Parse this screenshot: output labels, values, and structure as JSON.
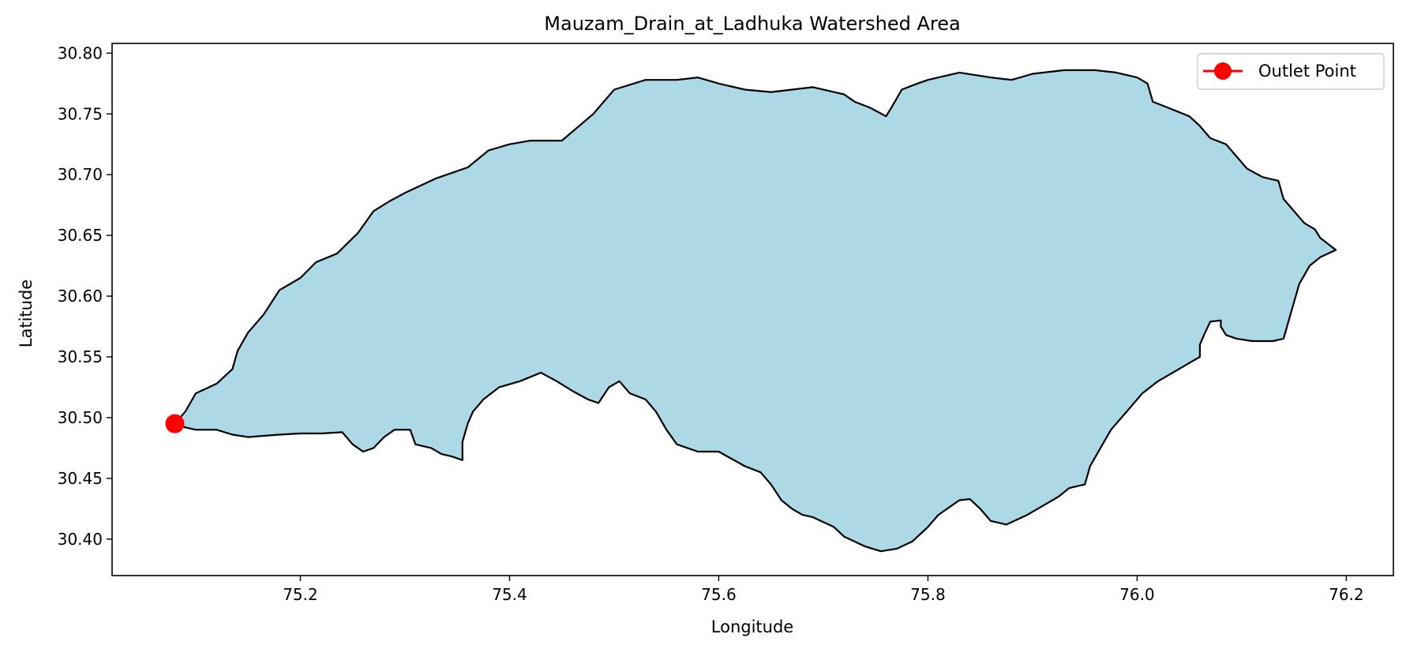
{
  "chart_data": {
    "type": "scatter",
    "title": "Mauzam_Drain_at_Ladhuka Watershed Area",
    "xlabel": "Longitude",
    "ylabel": "Latitude",
    "xlim": [
      75.02,
      76.245
    ],
    "ylim": [
      30.37,
      30.808
    ],
    "xticks": [
      75.2,
      75.4,
      75.6,
      75.8,
      76.0,
      76.2
    ],
    "xtick_labels": [
      "75.2",
      "75.4",
      "75.6",
      "75.8",
      "76.0",
      "76.2"
    ],
    "yticks": [
      30.4,
      30.45,
      30.5,
      30.55,
      30.6,
      30.65,
      30.7,
      30.75,
      30.8
    ],
    "ytick_labels": [
      "30.40",
      "30.45",
      "30.50",
      "30.55",
      "30.60",
      "30.65",
      "30.70",
      "30.75",
      "30.80"
    ],
    "grid": false,
    "legend_position": "top-right",
    "watershed": {
      "fill": "#add8e6",
      "edge": "#000000",
      "boundary": [
        [
          75.08,
          30.495
        ],
        [
          75.09,
          30.505
        ],
        [
          75.1,
          30.52
        ],
        [
          75.12,
          30.528
        ],
        [
          75.135,
          30.54
        ],
        [
          75.14,
          30.555
        ],
        [
          75.15,
          30.57
        ],
        [
          75.165,
          30.585
        ],
        [
          75.18,
          30.605
        ],
        [
          75.2,
          30.615
        ],
        [
          75.215,
          30.628
        ],
        [
          75.235,
          30.635
        ],
        [
          75.255,
          30.652
        ],
        [
          75.27,
          30.67
        ],
        [
          75.285,
          30.678
        ],
        [
          75.3,
          30.685
        ],
        [
          75.33,
          30.697
        ],
        [
          75.36,
          30.706
        ],
        [
          75.38,
          30.72
        ],
        [
          75.4,
          30.725
        ],
        [
          75.42,
          30.728
        ],
        [
          75.45,
          30.728
        ],
        [
          75.48,
          30.75
        ],
        [
          75.5,
          30.77
        ],
        [
          75.53,
          30.778
        ],
        [
          75.56,
          30.778
        ],
        [
          75.58,
          30.78
        ],
        [
          75.6,
          30.775
        ],
        [
          75.625,
          30.77
        ],
        [
          75.65,
          30.768
        ],
        [
          75.69,
          30.772
        ],
        [
          75.72,
          30.766
        ],
        [
          75.73,
          30.76
        ],
        [
          75.745,
          30.755
        ],
        [
          75.76,
          30.748
        ],
        [
          75.765,
          30.755
        ],
        [
          75.775,
          30.77
        ],
        [
          75.79,
          30.775
        ],
        [
          75.8,
          30.778
        ],
        [
          75.83,
          30.784
        ],
        [
          75.86,
          30.78
        ],
        [
          75.88,
          30.778
        ],
        [
          75.9,
          30.783
        ],
        [
          75.93,
          30.786
        ],
        [
          75.96,
          30.786
        ],
        [
          75.98,
          30.784
        ],
        [
          76.0,
          30.78
        ],
        [
          76.01,
          30.775
        ],
        [
          76.015,
          30.76
        ],
        [
          76.03,
          30.755
        ],
        [
          76.05,
          30.748
        ],
        [
          76.06,
          30.74
        ],
        [
          76.07,
          30.73
        ],
        [
          76.085,
          30.725
        ],
        [
          76.095,
          30.715
        ],
        [
          76.105,
          30.705
        ],
        [
          76.12,
          30.698
        ],
        [
          76.135,
          30.695
        ],
        [
          76.14,
          30.68
        ],
        [
          76.15,
          30.67
        ],
        [
          76.16,
          30.66
        ],
        [
          76.17,
          30.655
        ],
        [
          76.175,
          30.648
        ],
        [
          76.19,
          30.638
        ],
        [
          76.175,
          30.632
        ],
        [
          76.165,
          30.625
        ],
        [
          76.155,
          30.61
        ],
        [
          76.15,
          30.595
        ],
        [
          76.145,
          30.58
        ],
        [
          76.14,
          30.565
        ],
        [
          76.13,
          30.563
        ],
        [
          76.11,
          30.563
        ],
        [
          76.095,
          30.565
        ],
        [
          76.085,
          30.568
        ],
        [
          76.08,
          30.575
        ],
        [
          76.08,
          30.58
        ],
        [
          76.07,
          30.579
        ],
        [
          76.065,
          30.57
        ],
        [
          76.06,
          30.56
        ],
        [
          76.06,
          30.55
        ],
        [
          76.05,
          30.545
        ],
        [
          76.04,
          30.54
        ],
        [
          76.02,
          30.53
        ],
        [
          76.005,
          30.52
        ],
        [
          75.99,
          30.505
        ],
        [
          75.975,
          30.49
        ],
        [
          75.965,
          30.475
        ],
        [
          75.955,
          30.46
        ],
        [
          75.95,
          30.445
        ],
        [
          75.935,
          30.442
        ],
        [
          75.925,
          30.435
        ],
        [
          75.915,
          30.43
        ],
        [
          75.895,
          30.42
        ],
        [
          75.875,
          30.412
        ],
        [
          75.86,
          30.415
        ],
        [
          75.85,
          30.425
        ],
        [
          75.84,
          30.433
        ],
        [
          75.83,
          30.432
        ],
        [
          75.81,
          30.42
        ],
        [
          75.8,
          30.41
        ],
        [
          75.785,
          30.398
        ],
        [
          75.77,
          30.392
        ],
        [
          75.755,
          30.39
        ],
        [
          75.74,
          30.394
        ],
        [
          75.72,
          30.402
        ],
        [
          75.71,
          30.41
        ],
        [
          75.69,
          30.418
        ],
        [
          75.68,
          30.42
        ],
        [
          75.67,
          30.425
        ],
        [
          75.66,
          30.432
        ],
        [
          75.65,
          30.445
        ],
        [
          75.64,
          30.455
        ],
        [
          75.625,
          30.46
        ],
        [
          75.6,
          30.472
        ],
        [
          75.58,
          30.472
        ],
        [
          75.56,
          30.478
        ],
        [
          75.55,
          30.49
        ],
        [
          75.54,
          30.505
        ],
        [
          75.53,
          30.515
        ],
        [
          75.515,
          30.52
        ],
        [
          75.505,
          30.53
        ],
        [
          75.495,
          30.525
        ],
        [
          75.485,
          30.512
        ],
        [
          75.475,
          30.515
        ],
        [
          75.46,
          30.522
        ],
        [
          75.445,
          30.53
        ],
        [
          75.43,
          30.537
        ],
        [
          75.41,
          30.53
        ],
        [
          75.39,
          30.525
        ],
        [
          75.375,
          30.515
        ],
        [
          75.365,
          30.505
        ],
        [
          75.36,
          30.495
        ],
        [
          75.355,
          30.48
        ],
        [
          75.355,
          30.465
        ],
        [
          75.345,
          30.468
        ],
        [
          75.335,
          30.47
        ],
        [
          75.325,
          30.475
        ],
        [
          75.31,
          30.478
        ],
        [
          75.305,
          30.49
        ],
        [
          75.29,
          30.49
        ],
        [
          75.28,
          30.484
        ],
        [
          75.27,
          30.475
        ],
        [
          75.26,
          30.472
        ],
        [
          75.25,
          30.478
        ],
        [
          75.24,
          30.488
        ],
        [
          75.22,
          30.487
        ],
        [
          75.2,
          30.487
        ],
        [
          75.18,
          30.486
        ],
        [
          75.165,
          30.485
        ],
        [
          75.15,
          30.484
        ],
        [
          75.135,
          30.486
        ],
        [
          75.12,
          30.49
        ],
        [
          75.1,
          30.49
        ],
        [
          75.09,
          30.492
        ]
      ]
    },
    "series": [
      {
        "name": "Outlet Point",
        "color": "#ff0000",
        "marker": "circle",
        "x": [
          75.08
        ],
        "y": [
          30.495
        ]
      }
    ]
  }
}
